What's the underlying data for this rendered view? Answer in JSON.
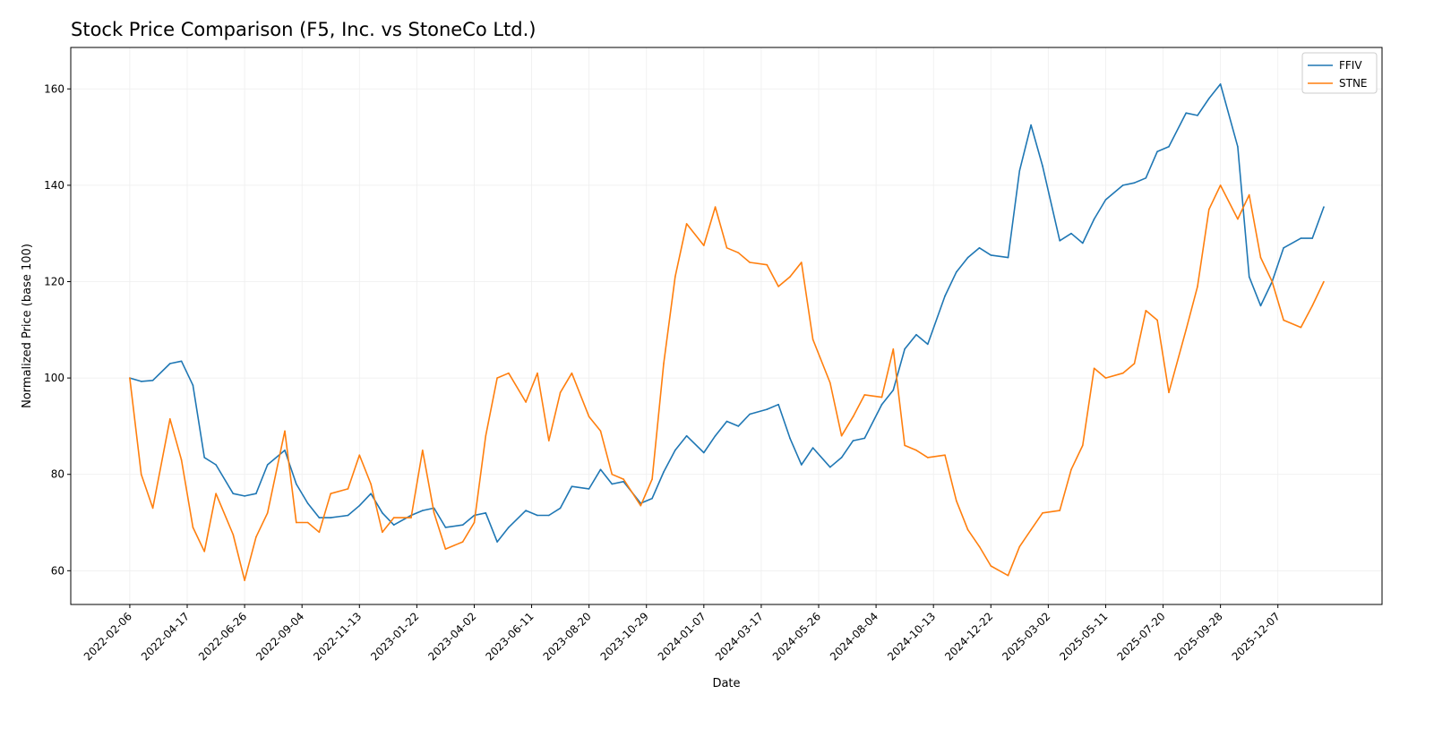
{
  "chart_data": {
    "type": "line",
    "title": "Stock Price Comparison (F5, Inc. vs StoneCo Ltd.)",
    "xlabel": "Date",
    "ylabel": "Normalized Price (base 100)",
    "xlim": [
      "2021-11-26",
      "2026-04-13"
    ],
    "ylim": [
      53,
      168.6
    ],
    "x_ticks": [
      "2022-02-06",
      "2022-04-17",
      "2022-06-26",
      "2022-09-04",
      "2022-11-13",
      "2023-01-22",
      "2023-04-02",
      "2023-06-11",
      "2023-08-20",
      "2023-10-29",
      "2024-01-07",
      "2024-03-17",
      "2024-05-26",
      "2024-08-04",
      "2024-10-13",
      "2024-12-22",
      "2025-03-02",
      "2025-05-11",
      "2025-07-20",
      "2025-09-28",
      "2025-12-07"
    ],
    "y_ticks": [
      60,
      80,
      100,
      120,
      140,
      160
    ],
    "grid": true,
    "legend": "top-right",
    "x": [
      "2022-02-06",
      "2022-02-20",
      "2022-03-06",
      "2022-03-27",
      "2022-04-10",
      "2022-04-24",
      "2022-05-08",
      "2022-05-22",
      "2022-06-12",
      "2022-06-26",
      "2022-07-10",
      "2022-07-24",
      "2022-08-14",
      "2022-08-28",
      "2022-09-11",
      "2022-09-25",
      "2022-10-09",
      "2022-10-30",
      "2022-11-13",
      "2022-11-27",
      "2022-12-11",
      "2022-12-25",
      "2023-01-15",
      "2023-01-29",
      "2023-02-12",
      "2023-02-26",
      "2023-03-19",
      "2023-04-02",
      "2023-04-16",
      "2023-04-30",
      "2023-05-14",
      "2023-06-04",
      "2023-06-18",
      "2023-07-02",
      "2023-07-16",
      "2023-07-30",
      "2023-08-20",
      "2023-09-03",
      "2023-09-17",
      "2023-10-01",
      "2023-10-22",
      "2023-11-05",
      "2023-11-19",
      "2023-12-03",
      "2023-12-17",
      "2024-01-07",
      "2024-01-21",
      "2024-02-04",
      "2024-02-18",
      "2024-03-03",
      "2024-03-24",
      "2024-04-07",
      "2024-04-21",
      "2024-05-05",
      "2024-05-19",
      "2024-06-09",
      "2024-06-23",
      "2024-07-07",
      "2024-07-21",
      "2024-08-11",
      "2024-08-25",
      "2024-09-08",
      "2024-09-22",
      "2024-10-06",
      "2024-10-27",
      "2024-11-10",
      "2024-11-24",
      "2024-12-08",
      "2024-12-22",
      "2025-01-12",
      "2025-01-26",
      "2025-02-09",
      "2025-02-23",
      "2025-03-16",
      "2025-03-30",
      "2025-04-13",
      "2025-04-27",
      "2025-05-11",
      "2025-06-01",
      "2025-06-15",
      "2025-06-29",
      "2025-07-13",
      "2025-07-27",
      "2025-08-17",
      "2025-08-31",
      "2025-09-14",
      "2025-09-28",
      "2025-10-19",
      "2025-11-02",
      "2025-11-16",
      "2025-11-30",
      "2025-12-14",
      "2026-01-04",
      "2026-01-18",
      "2026-02-01"
    ],
    "series": [
      {
        "name": "FFIV",
        "color": "#1f77b4",
        "values": [
          100,
          99.3,
          99.5,
          103,
          103.5,
          98.5,
          83.5,
          82,
          76,
          75.5,
          76,
          82,
          85,
          78,
          74,
          71,
          71,
          71.5,
          73.5,
          76,
          72,
          69.5,
          71.5,
          72.5,
          73,
          69,
          69.5,
          71.5,
          72,
          66,
          69,
          72.5,
          71.5,
          71.5,
          73,
          77.5,
          77,
          81,
          78,
          78.5,
          74,
          75,
          80.5,
          85,
          88,
          84.5,
          88,
          91,
          90,
          92.5,
          93.5,
          94.5,
          87.5,
          82,
          85.5,
          81.5,
          83.5,
          87,
          87.5,
          94.5,
          97.5,
          106,
          109,
          107,
          117,
          122,
          125,
          127,
          125.5,
          125,
          143,
          152.5,
          144,
          128.5,
          130,
          128,
          133,
          137,
          140,
          140.5,
          141.5,
          147,
          148,
          155,
          154.5,
          158,
          161,
          148,
          121,
          115,
          120,
          127,
          129,
          129,
          135.5
        ]
      },
      {
        "name": "STNE",
        "color": "#ff7f0e",
        "values": [
          100,
          80,
          73,
          91.5,
          83,
          69,
          64,
          76,
          67.5,
          58,
          67,
          72,
          89,
          70,
          70,
          68,
          76,
          77,
          84,
          78,
          68,
          71,
          71,
          85,
          72,
          64.5,
          66,
          70,
          88,
          100,
          101,
          95,
          101,
          87,
          97,
          101,
          92,
          89,
          80,
          79,
          73.5,
          79,
          103,
          121,
          132,
          127.5,
          135.5,
          127,
          126,
          124,
          123.5,
          119,
          121,
          124,
          108,
          99,
          88,
          92,
          96.5,
          96,
          106,
          86,
          85,
          83.5,
          84,
          74.5,
          68.5,
          65,
          61,
          59,
          65,
          68.5,
          72,
          72.5,
          81,
          86,
          102,
          100,
          101,
          103,
          114,
          112,
          97,
          110,
          119,
          135,
          140,
          133,
          138,
          125,
          120,
          112,
          110.5,
          115,
          120
        ]
      }
    ]
  }
}
